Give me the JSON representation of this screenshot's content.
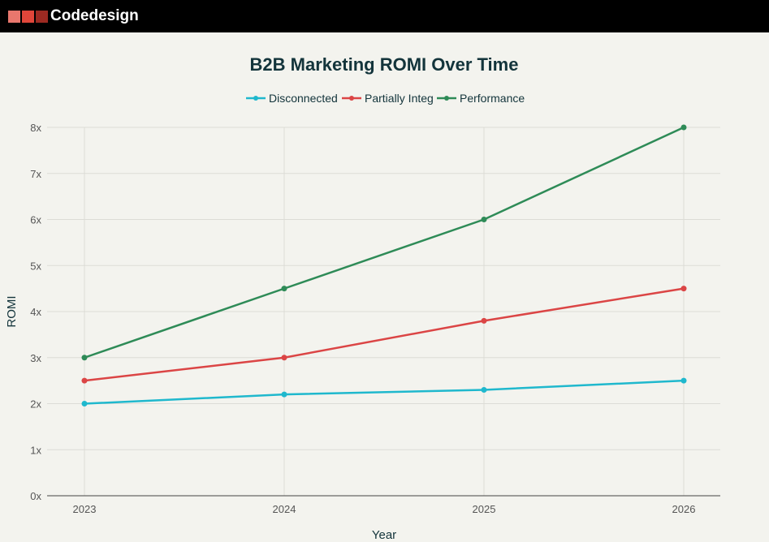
{
  "header": {
    "brand": "Codedesign",
    "logo_colors": [
      "#e8776d",
      "#e0463a",
      "#9c2a22"
    ]
  },
  "chart_data": {
    "type": "line",
    "title": "B2B Marketing ROMI Over Time",
    "xlabel": "Year",
    "ylabel": "ROMI",
    "x": [
      "2023",
      "2024",
      "2025",
      "2026"
    ],
    "ylim": [
      0,
      8
    ],
    "yticks": [
      "0x",
      "1x",
      "2x",
      "3x",
      "4x",
      "5x",
      "6x",
      "7x",
      "8x"
    ],
    "grid": true,
    "legend": "top-center",
    "series": [
      {
        "name": "Disconnected",
        "color": "#1fb8cd",
        "values": [
          2.0,
          2.2,
          2.3,
          2.5
        ]
      },
      {
        "name": "Partially Integ",
        "color": "#db4545",
        "values": [
          2.5,
          3.0,
          3.8,
          4.5
        ]
      },
      {
        "name": "Performance",
        "color": "#2e8b57",
        "values": [
          3.0,
          4.5,
          6.0,
          8.0
        ]
      }
    ]
  }
}
